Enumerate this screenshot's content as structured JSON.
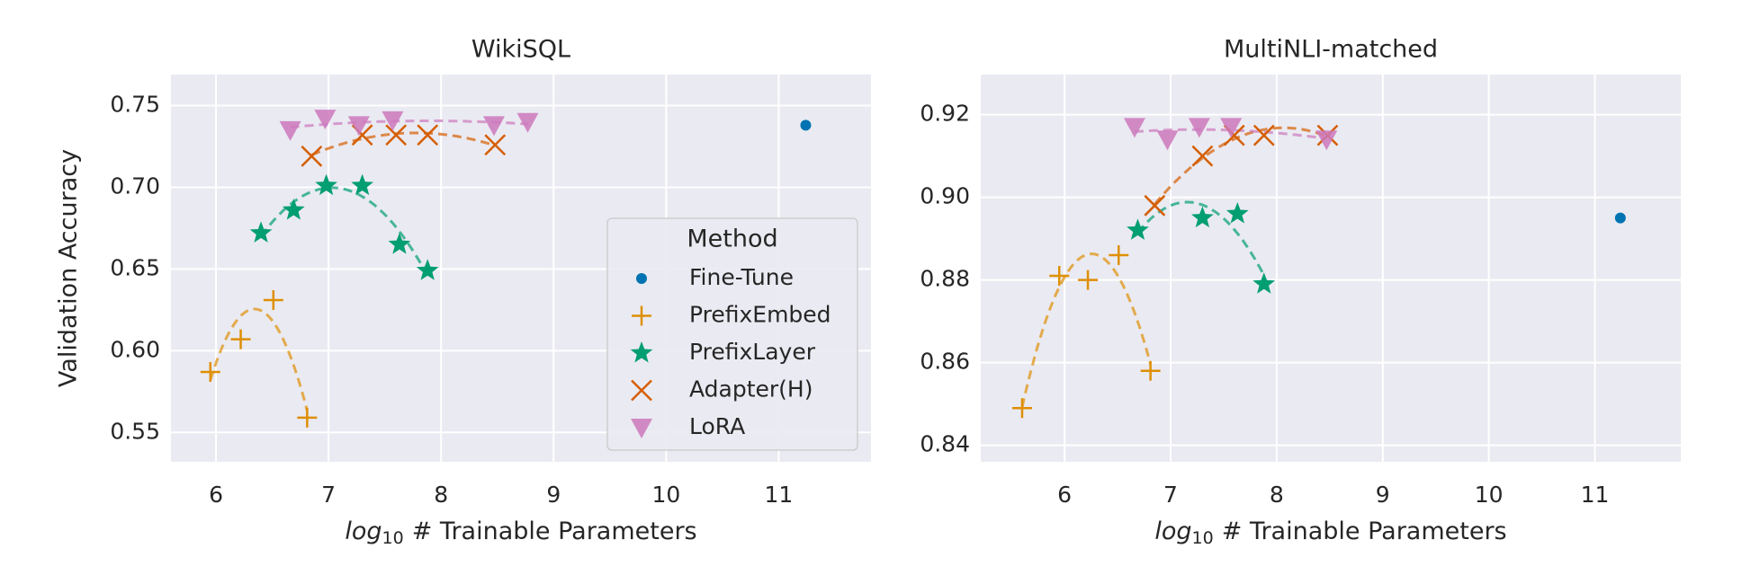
{
  "chart_data": [
    {
      "type": "scatter",
      "title": "WikiSQL",
      "x_label": [
        "log",
        "10",
        "# Trainable Parameters"
      ],
      "y_label": "Validation Accuracy",
      "xlim": [
        5.6,
        11.82
      ],
      "ylim": [
        0.532,
        0.769
      ],
      "xticks": [
        6,
        7,
        8,
        9,
        10,
        11
      ],
      "yticks": [
        {
          "value": 0.55,
          "label": "0.55"
        },
        {
          "value": 0.6,
          "label": "0.60"
        },
        {
          "value": 0.65,
          "label": "0.65"
        },
        {
          "value": 0.7,
          "label": "0.70"
        },
        {
          "value": 0.75,
          "label": "0.75"
        }
      ],
      "grid": true,
      "legend": "lower right",
      "legend_title": "Method",
      "series": [
        {
          "name": "Fine-Tune",
          "color": "#0173b2",
          "marker": "circle",
          "x": [
            11.24
          ],
          "values": [
            0.738
          ]
        },
        {
          "name": "PrefixEmbed",
          "color": "#de8f05",
          "marker": "plus",
          "x": [
            5.95,
            6.22,
            6.51,
            6.81
          ],
          "values": [
            0.587,
            0.607,
            0.631,
            0.559
          ]
        },
        {
          "name": "PrefixLayer",
          "color": "#029e73",
          "marker": "star",
          "x": [
            6.4,
            6.69,
            6.98,
            7.3,
            7.63,
            7.88
          ],
          "values": [
            0.672,
            0.686,
            0.701,
            0.701,
            0.665,
            0.649
          ]
        },
        {
          "name": "Adapter(H)",
          "color": "#d55e00",
          "marker": "x",
          "x": [
            6.85,
            7.3,
            7.6,
            7.88,
            8.48
          ],
          "values": [
            0.719,
            0.732,
            0.732,
            0.732,
            0.726
          ]
        },
        {
          "name": "LoRA",
          "color": "#cc78bc",
          "marker": "triangle-down",
          "x": [
            6.66,
            6.97,
            7.27,
            7.57,
            8.47,
            8.77
          ],
          "values": [
            0.735,
            0.742,
            0.738,
            0.741,
            0.738,
            0.74
          ]
        }
      ]
    },
    {
      "type": "scatter",
      "title": "MultiNLI-matched",
      "x_label": [
        "log",
        "10",
        "# Trainable Parameters"
      ],
      "xlim": [
        5.21,
        11.81
      ],
      "ylim": [
        0.836,
        0.9297
      ],
      "xticks": [
        6,
        7,
        8,
        9,
        10,
        11
      ],
      "yticks": [
        {
          "value": 0.84,
          "label": "0.84"
        },
        {
          "value": 0.86,
          "label": "0.86"
        },
        {
          "value": 0.88,
          "label": "0.88"
        },
        {
          "value": 0.9,
          "label": "0.90"
        },
        {
          "value": 0.92,
          "label": "0.92"
        }
      ],
      "grid": true,
      "series": [
        {
          "name": "Fine-Tune",
          "color": "#0173b2",
          "marker": "circle",
          "x": [
            11.24
          ],
          "values": [
            0.895
          ]
        },
        {
          "name": "PrefixEmbed",
          "color": "#de8f05",
          "marker": "plus",
          "x": [
            5.6,
            5.95,
            6.22,
            6.51,
            6.81
          ],
          "values": [
            0.849,
            0.881,
            0.88,
            0.886,
            0.858
          ]
        },
        {
          "name": "PrefixLayer",
          "color": "#029e73",
          "marker": "star",
          "x": [
            6.69,
            7.3,
            7.63,
            7.88
          ],
          "values": [
            0.892,
            0.895,
            0.896,
            0.879
          ]
        },
        {
          "name": "Adapter(H)",
          "color": "#d55e00",
          "marker": "x",
          "x": [
            6.85,
            7.3,
            7.6,
            7.88,
            8.48
          ],
          "values": [
            0.898,
            0.91,
            0.915,
            0.915,
            0.915
          ]
        },
        {
          "name": "LoRA",
          "color": "#cc78bc",
          "marker": "triangle-down",
          "x": [
            6.66,
            6.97,
            7.27,
            7.57,
            8.47
          ],
          "values": [
            0.917,
            0.914,
            0.917,
            0.917,
            0.914
          ]
        }
      ]
    }
  ]
}
